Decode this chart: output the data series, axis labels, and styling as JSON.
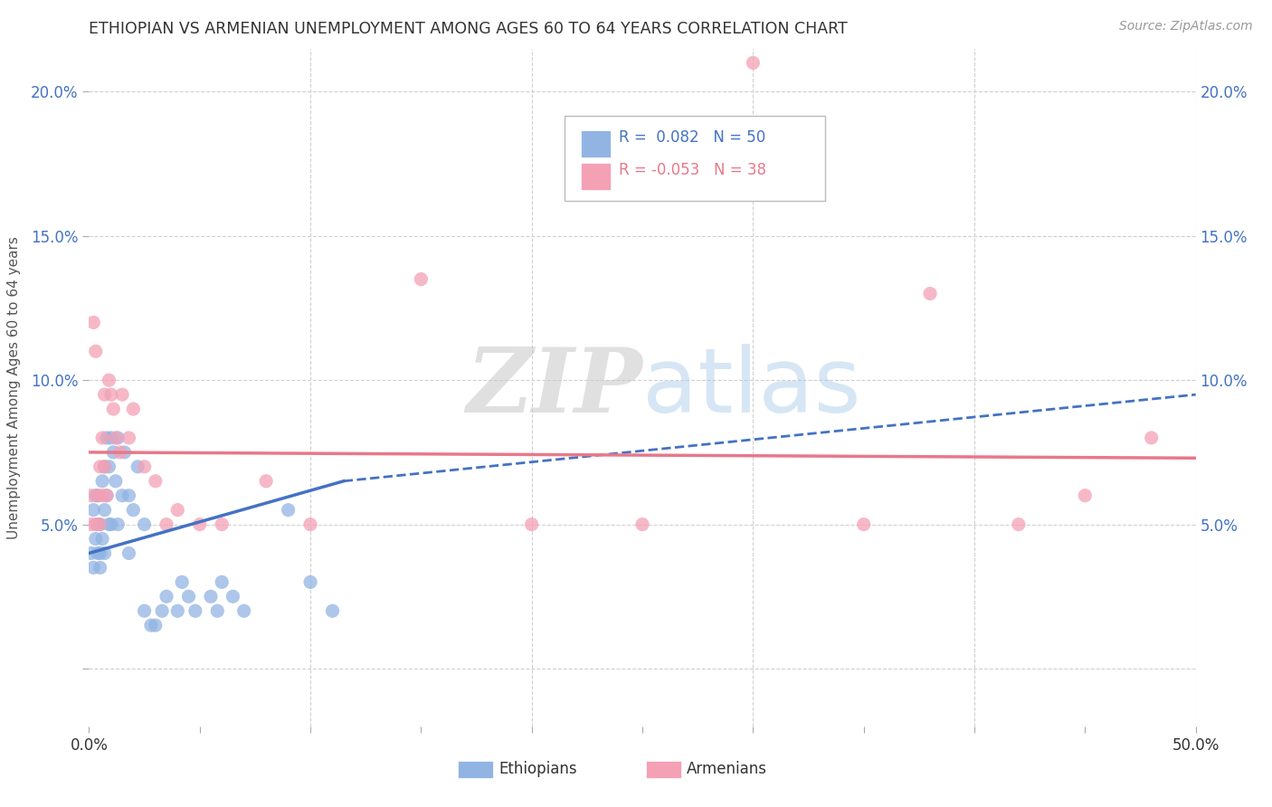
{
  "title": "ETHIOPIAN VS ARMENIAN UNEMPLOYMENT AMONG AGES 60 TO 64 YEARS CORRELATION CHART",
  "source": "Source: ZipAtlas.com",
  "ylabel": "Unemployment Among Ages 60 to 64 years",
  "xlim": [
    0.0,
    0.5
  ],
  "ylim": [
    -0.02,
    0.215
  ],
  "xticks": [
    0.0,
    0.05,
    0.1,
    0.15,
    0.2,
    0.25,
    0.3,
    0.35,
    0.4,
    0.45,
    0.5
  ],
  "yticks": [
    0.0,
    0.05,
    0.1,
    0.15,
    0.2
  ],
  "ethiopian_color": "#92b4e3",
  "armenian_color": "#f4a0b5",
  "ethiopian_line_color": "#4472c4",
  "armenian_line_color": "#e8788a",
  "R_ethiopian": 0.082,
  "N_ethiopian": 50,
  "R_armenian": -0.053,
  "N_armenian": 38,
  "watermark_zip": "ZIP",
  "watermark_atlas": "atlas",
  "background_color": "#ffffff",
  "grid_color": "#d0d0d0",
  "ethiopians_x": [
    0.001,
    0.002,
    0.002,
    0.003,
    0.003,
    0.004,
    0.004,
    0.004,
    0.005,
    0.005,
    0.005,
    0.006,
    0.006,
    0.007,
    0.007,
    0.007,
    0.008,
    0.008,
    0.009,
    0.009,
    0.01,
    0.01,
    0.011,
    0.012,
    0.013,
    0.013,
    0.015,
    0.016,
    0.018,
    0.018,
    0.02,
    0.022,
    0.025,
    0.025,
    0.028,
    0.03,
    0.033,
    0.035,
    0.04,
    0.042,
    0.045,
    0.048,
    0.055,
    0.058,
    0.06,
    0.065,
    0.07,
    0.09,
    0.1,
    0.11
  ],
  "ethiopians_y": [
    0.04,
    0.055,
    0.035,
    0.045,
    0.06,
    0.05,
    0.04,
    0.06,
    0.04,
    0.05,
    0.035,
    0.045,
    0.065,
    0.04,
    0.055,
    0.07,
    0.06,
    0.08,
    0.05,
    0.07,
    0.05,
    0.08,
    0.075,
    0.065,
    0.05,
    0.08,
    0.06,
    0.075,
    0.04,
    0.06,
    0.055,
    0.07,
    0.02,
    0.05,
    0.015,
    0.015,
    0.02,
    0.025,
    0.02,
    0.03,
    0.025,
    0.02,
    0.025,
    0.02,
    0.03,
    0.025,
    0.02,
    0.055,
    0.03,
    0.02
  ],
  "armenians_x": [
    0.001,
    0.001,
    0.002,
    0.003,
    0.003,
    0.004,
    0.005,
    0.005,
    0.006,
    0.006,
    0.007,
    0.007,
    0.008,
    0.009,
    0.01,
    0.011,
    0.012,
    0.014,
    0.015,
    0.018,
    0.02,
    0.025,
    0.03,
    0.035,
    0.04,
    0.05,
    0.06,
    0.08,
    0.1,
    0.15,
    0.2,
    0.25,
    0.3,
    0.35,
    0.38,
    0.42,
    0.45,
    0.48
  ],
  "armenians_y": [
    0.05,
    0.06,
    0.12,
    0.05,
    0.11,
    0.06,
    0.07,
    0.05,
    0.08,
    0.06,
    0.095,
    0.07,
    0.06,
    0.1,
    0.095,
    0.09,
    0.08,
    0.075,
    0.095,
    0.08,
    0.09,
    0.07,
    0.065,
    0.05,
    0.055,
    0.05,
    0.05,
    0.065,
    0.05,
    0.135,
    0.05,
    0.05,
    0.21,
    0.05,
    0.13,
    0.05,
    0.06,
    0.08
  ],
  "eth_line_x_start": 0.0,
  "eth_line_x_solid_end": 0.115,
  "eth_line_x_end": 0.5,
  "eth_line_y_at_0": 0.04,
  "eth_line_y_at_solid_end": 0.065,
  "eth_line_y_at_end": 0.095,
  "arm_line_x_start": 0.0,
  "arm_line_x_end": 0.5,
  "arm_line_y_at_0": 0.075,
  "arm_line_y_at_end": 0.073
}
